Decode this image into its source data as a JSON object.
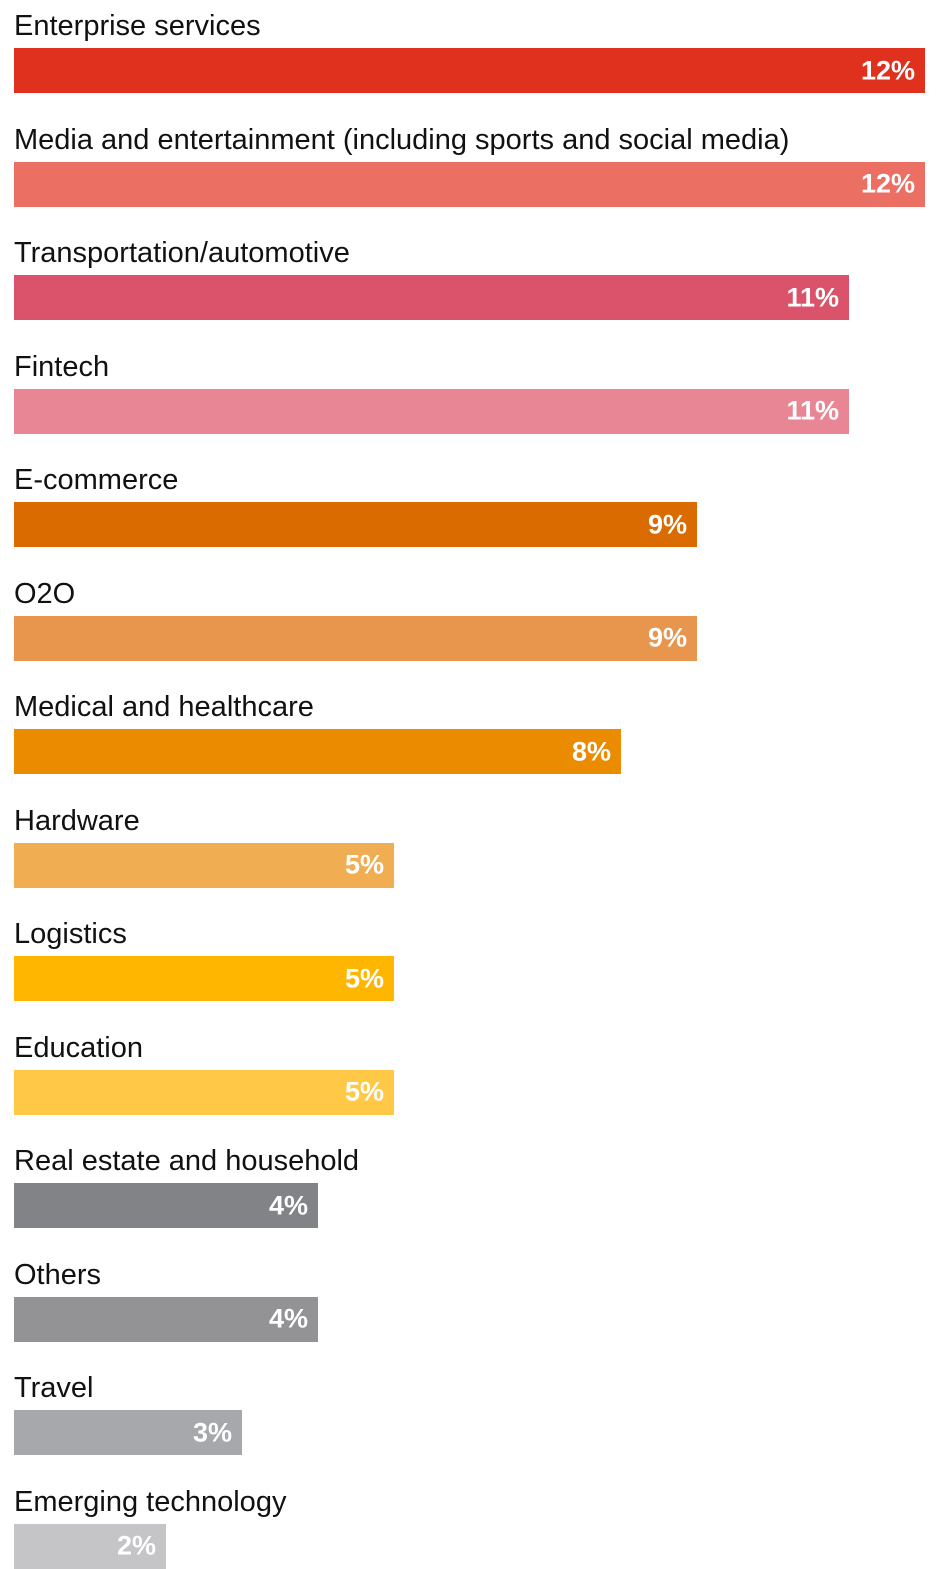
{
  "chart_data": {
    "type": "bar",
    "orientation": "horizontal",
    "categories": [
      "Enterprise services",
      "Media and entertainment (including sports and social media)",
      "Transportation/automotive",
      "Fintech",
      "E-commerce",
      "O2O",
      "Medical and healthcare",
      "Hardware",
      "Logistics",
      "Education",
      "Real estate and household",
      "Others",
      "Travel",
      "Emerging technology"
    ],
    "values": [
      12,
      12,
      11,
      11,
      9,
      9,
      8,
      5,
      5,
      5,
      4,
      4,
      3,
      2
    ],
    "value_labels": [
      "12%",
      "12%",
      "11%",
      "11%",
      "9%",
      "9%",
      "8%",
      "5%",
      "5%",
      "5%",
      "4%",
      "4%",
      "3%",
      "2%"
    ],
    "colors": [
      "#E0301E",
      "#EB6F63",
      "#DB536A",
      "#E88695",
      "#D96B00",
      "#E8964E",
      "#EB8C00",
      "#F1AD51",
      "#FFB600",
      "#FFC947",
      "#828387",
      "#939396",
      "#A7A8AB",
      "#C5C5C7"
    ],
    "xlim": [
      0,
      12
    ],
    "grid": false,
    "legend": "none"
  }
}
